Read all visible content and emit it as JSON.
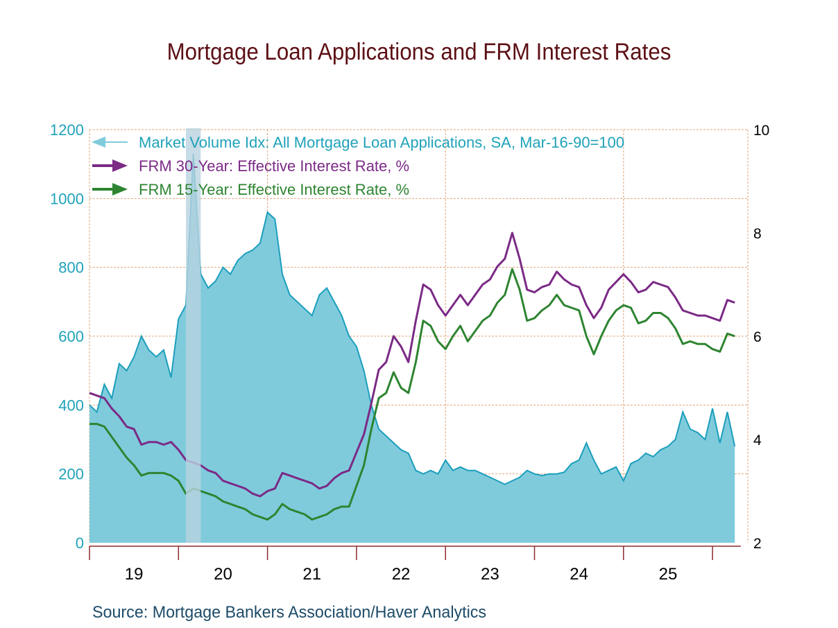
{
  "chart_data": {
    "type": "area+line",
    "title": "Mortgage Loan Applications and FRM Interest Rates",
    "source": "Source:  Mortgage Bankers Association/Haver Analytics",
    "x_tick_labels": [
      "19",
      "20",
      "21",
      "22",
      "23",
      "24",
      "25"
    ],
    "x_range": [
      "2019-01",
      "2026-04"
    ],
    "left_axis": {
      "ticks": [
        "0",
        "200",
        "400",
        "600",
        "800",
        "1000",
        "1200"
      ],
      "range": [
        0,
        1200
      ],
      "color": "#1fa2b9"
    },
    "right_axis": {
      "ticks": [
        "2",
        "4",
        "6",
        "8",
        "10"
      ],
      "range": [
        2,
        10
      ],
      "color": "#000000"
    },
    "grid": true,
    "legend_placement": "top-left",
    "recession_shading": [
      [
        "2020-02",
        "2020-04"
      ]
    ],
    "dates": [
      "2019-01",
      "2019-02",
      "2019-03",
      "2019-04",
      "2019-05",
      "2019-06",
      "2019-07",
      "2019-08",
      "2019-09",
      "2019-10",
      "2019-11",
      "2019-12",
      "2020-01",
      "2020-02",
      "2020-03",
      "2020-04",
      "2020-05",
      "2020-06",
      "2020-07",
      "2020-08",
      "2020-09",
      "2020-10",
      "2020-11",
      "2020-12",
      "2021-01",
      "2021-02",
      "2021-03",
      "2021-04",
      "2021-05",
      "2021-06",
      "2021-07",
      "2021-08",
      "2021-09",
      "2021-10",
      "2021-11",
      "2021-12",
      "2022-01",
      "2022-02",
      "2022-03",
      "2022-04",
      "2022-05",
      "2022-06",
      "2022-07",
      "2022-08",
      "2022-09",
      "2022-10",
      "2022-11",
      "2022-12",
      "2023-01",
      "2023-02",
      "2023-03",
      "2023-04",
      "2023-05",
      "2023-06",
      "2023-07",
      "2023-08",
      "2023-09",
      "2023-10",
      "2023-11",
      "2023-12",
      "2024-01",
      "2024-02",
      "2024-03",
      "2024-04",
      "2024-05",
      "2024-06",
      "2024-07",
      "2024-08",
      "2024-09",
      "2024-10",
      "2024-11",
      "2024-12",
      "2025-01",
      "2025-02",
      "2025-03",
      "2025-04",
      "2025-05",
      "2025-06",
      "2025-07",
      "2025-08",
      "2025-09",
      "2025-10",
      "2025-11",
      "2025-12",
      "2026-01",
      "2026-02",
      "2026-03",
      "2026-04"
    ],
    "series": [
      {
        "name": "Market Volume Idx: All Mortgage Loan Applications, SA, Mar-16-90=100",
        "axis": "left",
        "style": "area",
        "arrow": "left",
        "color": "#1b9ebc",
        "fill": "#7fcbdc",
        "values": [
          400,
          380,
          460,
          420,
          520,
          500,
          540,
          600,
          560,
          540,
          560,
          480,
          650,
          690,
          1130,
          780,
          740,
          760,
          800,
          780,
          820,
          840,
          850,
          870,
          960,
          940,
          780,
          720,
          700,
          680,
          660,
          720,
          740,
          700,
          660,
          600,
          570,
          500,
          400,
          330,
          310,
          290,
          270,
          260,
          210,
          200,
          210,
          200,
          240,
          210,
          220,
          210,
          210,
          200,
          190,
          180,
          170,
          180,
          190,
          210,
          200,
          195,
          200,
          200,
          205,
          230,
          240,
          290,
          240,
          200,
          210,
          220,
          180,
          230,
          240,
          260,
          250,
          270,
          280,
          300,
          380,
          330,
          320,
          300,
          390,
          290,
          380,
          280
        ]
      },
      {
        "name": "FRM 30-Year: Effective Interest Rate, %",
        "axis": "right",
        "style": "line",
        "arrow": "right",
        "color": "#7b2a86",
        "values": [
          4.9,
          4.85,
          4.8,
          4.6,
          4.45,
          4.25,
          4.2,
          3.9,
          3.95,
          3.95,
          3.9,
          3.95,
          3.8,
          3.6,
          3.55,
          3.5,
          3.4,
          3.35,
          3.2,
          3.15,
          3.1,
          3.05,
          2.95,
          2.9,
          3.0,
          3.05,
          3.35,
          3.3,
          3.25,
          3.2,
          3.15,
          3.05,
          3.1,
          3.25,
          3.35,
          3.4,
          3.75,
          4.1,
          4.7,
          5.35,
          5.5,
          6.0,
          5.8,
          5.5,
          6.3,
          7.0,
          6.9,
          6.6,
          6.4,
          6.6,
          6.8,
          6.6,
          6.8,
          7.0,
          7.1,
          7.35,
          7.5,
          8.0,
          7.5,
          6.9,
          6.85,
          6.95,
          7.0,
          7.25,
          7.1,
          7.0,
          6.95,
          6.6,
          6.35,
          6.55,
          6.9,
          7.05,
          7.2,
          7.05,
          6.85,
          6.9,
          7.05,
          7.0,
          6.95,
          6.75,
          6.5,
          6.45,
          6.4,
          6.4,
          6.35,
          6.3,
          6.7,
          6.65
        ]
      },
      {
        "name": "FRM 15-Year: Effective Interest Rate, %",
        "axis": "right",
        "style": "line",
        "arrow": "right",
        "color": "#2e8431",
        "values": [
          4.3,
          4.3,
          4.25,
          4.05,
          3.85,
          3.65,
          3.5,
          3.3,
          3.35,
          3.35,
          3.35,
          3.3,
          3.2,
          2.95,
          3.05,
          3.0,
          2.95,
          2.9,
          2.8,
          2.75,
          2.7,
          2.65,
          2.55,
          2.5,
          2.45,
          2.55,
          2.75,
          2.65,
          2.6,
          2.55,
          2.45,
          2.5,
          2.55,
          2.65,
          2.7,
          2.7,
          3.1,
          3.5,
          4.2,
          4.8,
          4.9,
          5.3,
          5.0,
          4.9,
          5.5,
          6.3,
          6.2,
          5.9,
          5.75,
          6.0,
          6.2,
          5.9,
          6.1,
          6.3,
          6.4,
          6.65,
          6.8,
          7.3,
          6.9,
          6.3,
          6.35,
          6.5,
          6.6,
          6.8,
          6.6,
          6.55,
          6.5,
          6.0,
          5.65,
          6.0,
          6.3,
          6.5,
          6.6,
          6.55,
          6.25,
          6.3,
          6.45,
          6.45,
          6.35,
          6.15,
          5.85,
          5.9,
          5.85,
          5.85,
          5.75,
          5.7,
          6.05,
          6.0
        ]
      }
    ]
  }
}
